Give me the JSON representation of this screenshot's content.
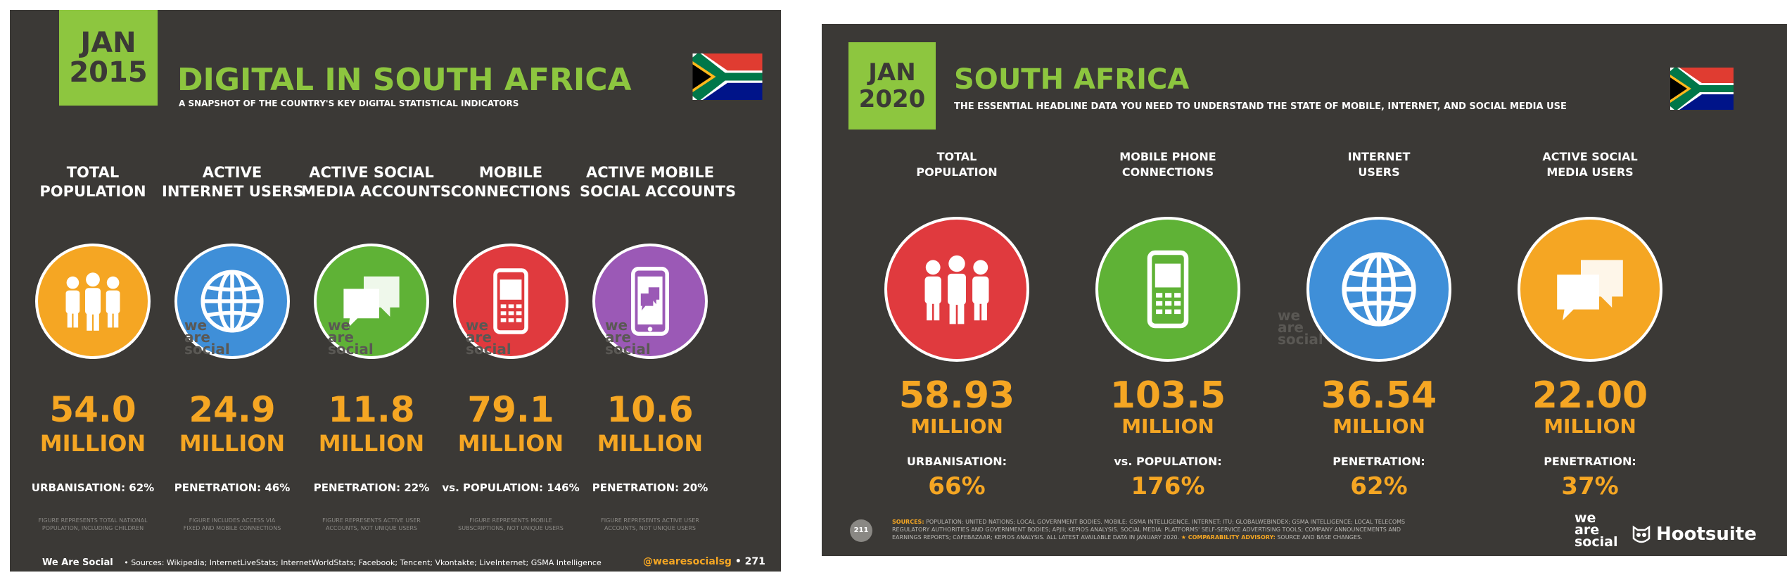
{
  "slide_2015": {
    "date": {
      "month": "JAN",
      "year": "2015"
    },
    "title": "DIGITAL IN SOUTH AFRICA",
    "subtitle": "A SNAPSHOT OF THE COUNTRY'S KEY DIGITAL STATISTICAL INDICATORS",
    "watermark": [
      "we",
      "are",
      "social"
    ],
    "metrics": [
      {
        "label": [
          "TOTAL",
          "POPULATION"
        ],
        "icon": "people-icon",
        "color": "#f5a623",
        "value": "54.0",
        "unit": "MILLION",
        "sub": "URBANISATION: 62%",
        "note": [
          "FIGURE REPRESENTS TOTAL NATIONAL",
          "POPULATION, INCLUDING CHILDREN"
        ]
      },
      {
        "label": [
          "ACTIVE",
          "INTERNET USERS"
        ],
        "icon": "globe-icon",
        "color": "#3f8fd8",
        "value": "24.9",
        "unit": "MILLION",
        "sub": "PENETRATION: 46%",
        "note": [
          "FIGURE INCLUDES ACCESS VIA",
          "FIXED AND MOBILE CONNECTIONS"
        ]
      },
      {
        "label": [
          "ACTIVE SOCIAL",
          "MEDIA ACCOUNTS"
        ],
        "icon": "speech-bubbles-icon",
        "color": "#5fb236",
        "value": "11.8",
        "unit": "MILLION",
        "sub": "PENETRATION: 22%",
        "note": [
          "FIGURE REPRESENTS ACTIVE USER",
          "ACCOUNTS, NOT UNIQUE USERS"
        ]
      },
      {
        "label": [
          "MOBILE",
          "CONNECTIONS"
        ],
        "icon": "mobile-phone-icon",
        "color": "#e03a3e",
        "value": "79.1",
        "unit": "MILLION",
        "sub": "vs. POPULATION: 146%",
        "note": [
          "FIGURE REPRESENTS MOBILE",
          "SUBSCRIPTIONS, NOT UNIQUE USERS"
        ]
      },
      {
        "label": [
          "ACTIVE MOBILE",
          "SOCIAL ACCOUNTS"
        ],
        "icon": "mobile-social-icon",
        "color": "#9b59b6",
        "value": "10.6",
        "unit": "MILLION",
        "sub": "PENETRATION: 20%",
        "note": [
          "FIGURE REPRESENTS ACTIVE USER",
          "ACCOUNTS, NOT UNIQUE USERS"
        ]
      }
    ],
    "footer": {
      "brand": "We Are Social",
      "sources": "• Sources: Wikipedia; InternetLiveStats; InternetWorldStats; Facebook; Tencent; Vkontakte; LiveInternet; GSMA Intelligence",
      "handle": "@wearesocialsg",
      "page": "• 271"
    }
  },
  "slide_2020": {
    "date": {
      "month": "JAN",
      "year": "2020"
    },
    "title": "SOUTH AFRICA",
    "subtitle": "THE ESSENTIAL HEADLINE DATA YOU NEED TO UNDERSTAND THE STATE OF MOBILE, INTERNET, AND SOCIAL MEDIA USE",
    "watermark": [
      "we",
      "are",
      "social"
    ],
    "metrics": [
      {
        "label": [
          "TOTAL",
          "POPULATION"
        ],
        "icon": "people-icon",
        "color": "#e03a3e",
        "value": "58.93",
        "unit": "MILLION",
        "sub": "URBANISATION:",
        "sub2": "66%"
      },
      {
        "label": [
          "MOBILE PHONE",
          "CONNECTIONS"
        ],
        "icon": "mobile-phone-icon",
        "color": "#5fb236",
        "value": "103.5",
        "unit": "MILLION",
        "sub": "vs. POPULATION:",
        "sub2": "176%"
      },
      {
        "label": [
          "INTERNET",
          "USERS"
        ],
        "icon": "globe-icon",
        "color": "#3f8fd8",
        "value": "36.54",
        "unit": "MILLION",
        "sub": "PENETRATION:",
        "sub2": "62%"
      },
      {
        "label": [
          "ACTIVE SOCIAL",
          "MEDIA USERS"
        ],
        "icon": "speech-bubbles-icon",
        "color": "#f5a623",
        "value": "22.00",
        "unit": "MILLION",
        "sub": "PENETRATION:",
        "sub2": "37%"
      }
    ],
    "footer": {
      "page": "211",
      "sources_label": "SOURCES:",
      "sources_lines": [
        "POPULATION: UNITED NATIONS; LOCAL GOVERNMENT BODIES. MOBILE: GSMA INTELLIGENCE. INTERNET: ITU; GLOBALWEBINDEX; GSMA INTELLIGENCE; LOCAL TELECOMS",
        "REGULATORY AUTHORITIES AND GOVERNMENT BODIES; APJII; KEPIOS ANALYSIS. SOCIAL MEDIA: PLATFORMS' SELF-SERVICE ADVERTISING TOOLS; COMPANY ANNOUNCEMENTS AND",
        "EARNINGS REPORTS; CAFEBAZAAR; KEPIOS ANALYSIS. ALL LATEST AVAILABLE DATA IN JANUARY 2020."
      ],
      "advisory_label": "COMPARABILITY ADVISORY:",
      "advisory": "SOURCE AND BASE CHANGES.",
      "brand_we_are_social": [
        "we",
        "are",
        "social"
      ],
      "brand_hootsuite": "Hootsuite"
    }
  }
}
